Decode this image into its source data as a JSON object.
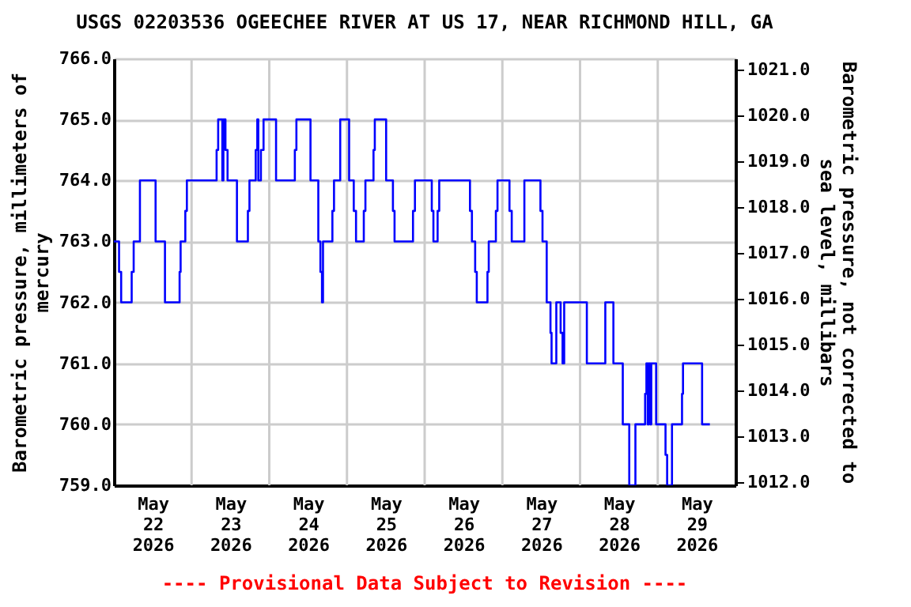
{
  "chart_data": {
    "type": "step",
    "title": "USGS 02203536 OGEECHEE RIVER AT US 17, NEAR RICHMOND HILL, GA",
    "ylabel": "Barometric pressure, millimeters of\nmercury",
    "y2label": "Barometric pressure, not corrected to\nsea level, millibars",
    "annotations": [
      "---- Provisional Data Subject to Revision ----"
    ],
    "xlim": [
      "2026-05-22T00:00",
      "2026-05-30T00:00"
    ],
    "xticks": [
      {
        "value": "2026-05-22T12:00",
        "label": "May\n22\n2026"
      },
      {
        "value": "2026-05-23T12:00",
        "label": "May\n23\n2026"
      },
      {
        "value": "2026-05-24T12:00",
        "label": "May\n24\n2026"
      },
      {
        "value": "2026-05-25T12:00",
        "label": "May\n25\n2026"
      },
      {
        "value": "2026-05-26T12:00",
        "label": "May\n26\n2026"
      },
      {
        "value": "2026-05-27T12:00",
        "label": "May\n27\n2026"
      },
      {
        "value": "2026-05-28T12:00",
        "label": "May\n28\n2026"
      },
      {
        "value": "2026-05-29T12:00",
        "label": "May\n29\n2026"
      },
      {
        "value": "2026-05-23T00:00",
        "label": null
      },
      {
        "value": "2026-05-24T00:00",
        "label": null
      },
      {
        "value": "2026-05-25T00:00",
        "label": null
      },
      {
        "value": "2026-05-26T00:00",
        "label": null
      },
      {
        "value": "2026-05-27T00:00",
        "label": null
      },
      {
        "value": "2026-05-28T00:00",
        "label": null
      },
      {
        "value": "2026-05-29T00:00",
        "label": null
      }
    ],
    "ylim": [
      759,
      766
    ],
    "yticks": [
      {
        "value": 759,
        "label": "759.0"
      },
      {
        "value": 760,
        "label": "760.0"
      },
      {
        "value": 761,
        "label": "761.0"
      },
      {
        "value": 762,
        "label": "762.0"
      },
      {
        "value": 763,
        "label": "763.0"
      },
      {
        "value": 764,
        "label": "764.0"
      },
      {
        "value": 765,
        "label": "765.0"
      },
      {
        "value": 766,
        "label": "766.0"
      }
    ],
    "y2lim": [
      1011.93,
      1021.25
    ],
    "y2ticks": [
      {
        "value": 1012,
        "label": "1012.0"
      },
      {
        "value": 1013,
        "label": "1013.0"
      },
      {
        "value": 1014,
        "label": "1014.0"
      },
      {
        "value": 1015,
        "label": "1015.0"
      },
      {
        "value": 1016,
        "label": "1016.0"
      },
      {
        "value": 1017,
        "label": "1017.0"
      },
      {
        "value": 1018,
        "label": "1018.0"
      },
      {
        "value": 1019,
        "label": "1019.0"
      },
      {
        "value": 1020,
        "label": "1020.0"
      },
      {
        "value": 1021,
        "label": "1021.0"
      }
    ],
    "grid": true,
    "marker": "none",
    "line_style": "solid",
    "x": [
      "2026-05-22T00:00",
      "2026-05-22T01:36",
      "2026-05-22T02:15",
      "2026-05-22T05:30",
      "2026-05-22T06:07",
      "2026-05-22T08:03",
      "2026-05-22T12:53",
      "2026-05-22T15:47",
      "2026-05-22T20:18",
      "2026-05-22T20:37",
      "2026-05-22T22:04",
      "2026-05-22T22:33",
      "2026-05-23T07:44",
      "2026-05-23T08:13",
      "2026-05-23T09:30",
      "2026-05-23T09:50",
      "2026-05-23T10:28",
      "2026-05-23T11:07",
      "2026-05-23T14:01",
      "2026-05-23T17:24",
      "2026-05-23T17:53",
      "2026-05-23T19:49",
      "2026-05-23T20:18",
      "2026-05-23T20:37",
      "2026-05-23T21:25",
      "2026-05-23T22:14",
      "2026-05-24T02:06",
      "2026-05-24T07:54",
      "2026-05-24T08:23",
      "2026-05-24T12:44",
      "2026-05-24T15:09",
      "2026-05-24T15:48",
      "2026-05-24T16:17",
      "2026-05-24T16:36",
      "2026-05-24T19:30",
      "2026-05-24T20:00",
      "2026-05-24T21:55",
      "2026-05-25T00:40",
      "2026-05-25T02:06",
      "2026-05-25T02:48",
      "2026-05-25T05:12",
      "2026-05-25T05:42",
      "2026-05-25T08:12",
      "2026-05-25T08:36",
      "2026-05-25T12:06",
      "2026-05-25T14:12",
      "2026-05-25T14:42",
      "2026-05-25T20:24",
      "2026-05-25T21:00",
      "2026-05-26T02:12",
      "2026-05-26T02:42",
      "2026-05-26T04:00",
      "2026-05-26T04:30",
      "2026-05-26T14:00",
      "2026-05-26T14:36",
      "2026-05-26T15:36",
      "2026-05-26T16:06",
      "2026-05-26T19:24",
      "2026-05-26T19:48",
      "2026-05-26T22:00",
      "2026-05-26T22:30",
      "2026-05-27T02:12",
      "2026-05-27T02:54",
      "2026-05-27T06:48",
      "2026-05-27T11:46",
      "2026-05-27T12:24",
      "2026-05-27T13:42",
      "2026-05-27T14:52",
      "2026-05-27T15:12",
      "2026-05-27T16:40",
      "2026-05-27T18:00",
      "2026-05-27T18:36",
      "2026-05-27T19:06",
      "2026-05-28T02:06",
      "2026-05-28T07:48",
      "2026-05-28T10:18",
      "2026-05-28T13:12",
      "2026-05-28T15:12",
      "2026-05-28T17:06",
      "2026-05-28T20:06",
      "2026-05-28T20:30",
      "2026-05-28T20:54",
      "2026-05-28T21:12",
      "2026-05-28T21:42",
      "2026-05-28T22:00",
      "2026-05-28T23:30",
      "2026-05-29T02:24",
      "2026-05-29T02:54",
      "2026-05-29T04:24",
      "2026-05-29T07:30",
      "2026-05-29T07:48",
      "2026-05-29T13:42",
      "2026-05-29T16:06"
    ],
    "series": [
      {
        "color": "#0000ff",
        "values": [
          763,
          762.5,
          762,
          762.5,
          763,
          764,
          763,
          762,
          762.5,
          763,
          763.5,
          764,
          764.5,
          765,
          764,
          765,
          764.5,
          764,
          763,
          763.5,
          764,
          764.5,
          765,
          764,
          764.5,
          765,
          764,
          764.5,
          765,
          764,
          763,
          762.5,
          762,
          763,
          763.5,
          764,
          765,
          764,
          763.5,
          763,
          763.5,
          764,
          764.5,
          765,
          764,
          763.5,
          763,
          763.5,
          764,
          763.5,
          763,
          763.5,
          764,
          763.5,
          763,
          762.5,
          762,
          762.5,
          763,
          763.5,
          764,
          763.5,
          763,
          764,
          763.5,
          763,
          762,
          761.5,
          761,
          762,
          761.5,
          761,
          762,
          761,
          762,
          761,
          760,
          759,
          760,
          760.5,
          761,
          760,
          761,
          760,
          761,
          760,
          759.5,
          759,
          760,
          760.5,
          761,
          760,
          760
        ]
      }
    ]
  }
}
